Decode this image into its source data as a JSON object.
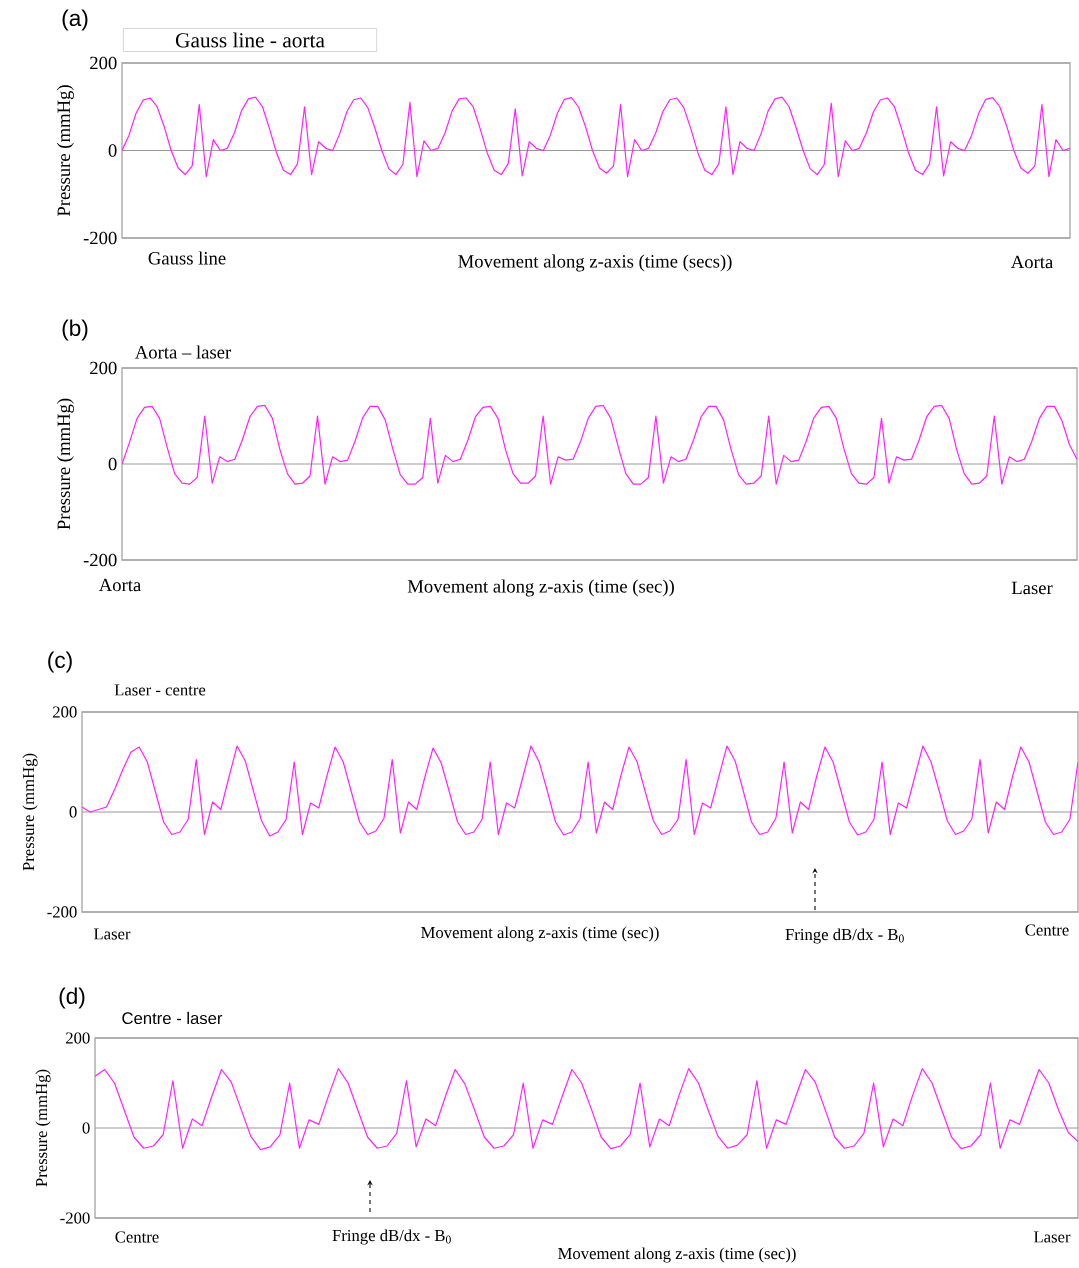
{
  "chart_data": [
    {
      "type": "line",
      "title": "Gauss line - aorta",
      "xlabel": "Movement along z-axis (time (secs))",
      "ylabel": "Pressure (mmHg)",
      "annotations": [
        "(a)",
        "Gauss line",
        "Aorta"
      ],
      "categories": [
        null,
        null,
        null,
        null,
        null,
        null,
        null,
        null,
        null,
        null,
        null,
        null,
        null,
        null,
        null,
        null,
        null,
        null,
        null,
        null,
        null,
        null,
        null,
        null,
        null,
        null,
        null,
        null,
        null,
        null,
        null,
        null,
        null,
        null,
        null,
        null,
        null,
        null,
        null,
        null,
        null,
        null,
        null,
        null,
        null,
        null,
        null,
        null,
        null,
        null,
        null,
        null,
        null,
        null,
        null,
        null,
        null,
        null,
        null,
        null,
        null,
        null,
        null,
        null,
        null,
        null,
        null,
        null,
        null,
        null,
        null,
        null,
        null,
        null,
        null,
        null,
        null,
        null,
        null,
        null,
        null,
        null,
        null,
        null,
        null,
        null,
        null,
        null,
        null,
        null,
        null,
        null,
        null,
        null,
        null,
        null,
        null,
        null,
        null,
        null,
        null,
        null,
        null,
        null,
        null,
        null,
        null,
        null,
        null,
        null,
        null,
        null,
        null,
        null,
        null,
        null,
        null,
        null,
        null,
        null,
        null,
        null,
        null,
        null,
        null,
        null,
        null,
        null,
        null,
        null,
        null,
        null,
        null,
        null,
        null,
        null
      ],
      "series": [
        {
          "color": "#ff22ff",
          "values": [
            0,
            35,
            85,
            115,
            120,
            100,
            55,
            0,
            -40,
            -55,
            -35,
            105,
            -60,
            25,
            0,
            5,
            40,
            90,
            118,
            122,
            100,
            50,
            -5,
            -45,
            -55,
            -30,
            100,
            -55,
            20,
            5,
            0,
            38,
            88,
            116,
            120,
            98,
            52,
            0,
            -42,
            -55,
            -32,
            110,
            -60,
            22,
            0,
            5,
            40,
            90,
            118,
            120,
            100,
            50,
            -5,
            -45,
            -55,
            -30,
            95,
            -58,
            20,
            5,
            0,
            35,
            85,
            117,
            121,
            100,
            55,
            0,
            -40,
            -52,
            -35,
            105,
            -60,
            25,
            0,
            5,
            40,
            88,
            116,
            120,
            98,
            50,
            -5,
            -45,
            -55,
            -30,
            100,
            -55,
            20,
            5,
            0,
            38,
            90,
            118,
            122,
            100,
            52,
            0,
            -42,
            -55,
            -32,
            108,
            -60,
            22,
            0,
            5,
            40,
            88,
            116,
            120,
            100,
            50,
            -5,
            -45,
            -55,
            -30,
            100,
            -58,
            20,
            5,
            0,
            35,
            85,
            117,
            121,
            100,
            55,
            0,
            -40,
            -52,
            -35,
            105,
            -60,
            25,
            0,
            5
          ]
        }
      ],
      "ylim": [
        -200,
        200
      ],
      "yticks": [
        -200,
        0,
        200
      ],
      "grid": "y"
    },
    {
      "type": "line",
      "title": "Aorta – laser",
      "xlabel": "Movement along z-axis (time  (sec))",
      "ylabel": "Pressure (mmHg)",
      "annotations": [
        "(b)",
        "Aorta",
        "Laser"
      ],
      "categories": [
        null,
        null,
        null,
        null,
        null,
        null,
        null,
        null,
        null,
        null,
        null,
        null,
        null,
        null,
        null,
        null,
        null,
        null,
        null,
        null,
        null,
        null,
        null,
        null,
        null,
        null,
        null,
        null,
        null,
        null,
        null,
        null,
        null,
        null,
        null,
        null,
        null,
        null,
        null,
        null,
        null,
        null,
        null,
        null,
        null,
        null,
        null,
        null,
        null,
        null,
        null,
        null,
        null,
        null,
        null,
        null,
        null,
        null,
        null,
        null,
        null,
        null,
        null,
        null,
        null,
        null,
        null,
        null,
        null,
        null,
        null,
        null,
        null,
        null,
        null,
        null,
        null,
        null,
        null,
        null,
        null,
        null,
        null,
        null,
        null,
        null,
        null,
        null,
        null,
        null,
        null,
        null,
        null,
        null,
        null,
        null,
        null,
        null,
        null,
        null,
        null,
        null,
        null,
        null,
        null,
        null,
        null,
        null,
        null,
        null,
        null,
        null,
        null,
        null,
        null,
        null,
        null,
        null,
        null,
        null,
        null,
        null,
        null,
        null,
        null,
        null,
        null,
        null
      ],
      "series": [
        {
          "color": "#ff22ff",
          "values": [
            0,
            45,
            95,
            118,
            120,
            95,
            35,
            -20,
            -40,
            -42,
            -28,
            100,
            -40,
            15,
            5,
            10,
            50,
            98,
            120,
            122,
            95,
            30,
            -20,
            -42,
            -40,
            -25,
            100,
            -42,
            15,
            5,
            8,
            48,
            96,
            120,
            120,
            92,
            32,
            -22,
            -42,
            -42,
            -28,
            95,
            -40,
            18,
            5,
            10,
            50,
            98,
            118,
            120,
            95,
            30,
            -20,
            -40,
            -40,
            -25,
            100,
            -42,
            15,
            8,
            10,
            48,
            95,
            120,
            122,
            95,
            35,
            -20,
            -42,
            -42,
            -28,
            100,
            -40,
            15,
            5,
            10,
            50,
            98,
            120,
            120,
            92,
            30,
            -22,
            -42,
            -40,
            -25,
            100,
            -42,
            18,
            5,
            8,
            48,
            96,
            118,
            120,
            95,
            32,
            -20,
            -40,
            -42,
            -28,
            95,
            -40,
            15,
            8,
            10,
            50,
            98,
            120,
            122,
            95,
            30,
            -20,
            -42,
            -40,
            -25,
            100,
            -42,
            15,
            5,
            10,
            48,
            95,
            120,
            120,
            90,
            40,
            10
          ]
        }
      ],
      "ylim": [
        -200,
        200
      ],
      "yticks": [
        -200,
        0,
        200
      ],
      "grid": "y"
    },
    {
      "type": "line",
      "title": "Laser - centre",
      "xlabel": "Movement along z-axis (time  (sec))",
      "ylabel": "Pressure (mmHg)",
      "annotations": [
        "(c)",
        "Laser",
        "Centre",
        "Fringe dB/dx - B$_{0}$"
      ],
      "categories": [
        null,
        null,
        null,
        null,
        null,
        null,
        null,
        null,
        null,
        null,
        null,
        null,
        null,
        null,
        null,
        null,
        null,
        null,
        null,
        null,
        null,
        null,
        null,
        null,
        null,
        null,
        null,
        null,
        null,
        null,
        null,
        null,
        null,
        null,
        null,
        null,
        null,
        null,
        null,
        null,
        null,
        null,
        null,
        null,
        null,
        null,
        null,
        null,
        null,
        null,
        null,
        null,
        null,
        null,
        null,
        null,
        null,
        null,
        null,
        null,
        null,
        null,
        null,
        null,
        null,
        null,
        null,
        null,
        null,
        null,
        null,
        null,
        null,
        null,
        null,
        null,
        null,
        null,
        null,
        null,
        null,
        null,
        null,
        null,
        null,
        null,
        null,
        null,
        null,
        null,
        null,
        null,
        null,
        null,
        null,
        null,
        null,
        null,
        null,
        null,
        null,
        null,
        null,
        null,
        null,
        null,
        null,
        null,
        null,
        null,
        null,
        null,
        null,
        null,
        null,
        null,
        null,
        null,
        null,
        null,
        null,
        null,
        null
      ],
      "series": [
        {
          "color": "#ff22ff",
          "values": [
            10,
            0,
            5,
            10,
            45,
            85,
            120,
            130,
            100,
            40,
            -20,
            -45,
            -40,
            -15,
            105,
            -45,
            20,
            5,
            70,
            132,
            102,
            42,
            -18,
            -48,
            -40,
            -15,
            100,
            -45,
            18,
            8,
            72,
            130,
            100,
            40,
            -20,
            -45,
            -38,
            -12,
            105,
            -42,
            20,
            5,
            70,
            128,
            98,
            40,
            -20,
            -45,
            -40,
            -15,
            100,
            -45,
            18,
            8,
            70,
            132,
            100,
            42,
            -20,
            -46,
            -40,
            -14,
            100,
            -42,
            20,
            5,
            72,
            130,
            100,
            40,
            -18,
            -45,
            -38,
            -15,
            105,
            -45,
            18,
            8,
            70,
            132,
            102,
            42,
            -20,
            -45,
            -40,
            -12,
            100,
            -42,
            20,
            5,
            72,
            130,
            100,
            40,
            -20,
            -46,
            -40,
            -15,
            100,
            -45,
            18,
            8,
            70,
            132,
            100,
            42,
            -18,
            -45,
            -38,
            -14,
            105,
            -42,
            20,
            5,
            72,
            130,
            100,
            40,
            -20,
            -45,
            -40,
            -15,
            100
          ]
        }
      ],
      "ylim": [
        -200,
        200
      ],
      "yticks": [
        -200,
        0,
        200
      ],
      "grid": "y"
    },
    {
      "type": "line",
      "title": "Centre - laser",
      "xlabel": "Movement along z-axis (time  (sec))",
      "ylabel": "Pressure (mmHg)",
      "annotations": [
        "(d)",
        "Centre",
        "Laser",
        "Fringe dB/dx - B$_{0}$"
      ],
      "categories": [
        null,
        null,
        null,
        null,
        null,
        null,
        null,
        null,
        null,
        null,
        null,
        null,
        null,
        null,
        null,
        null,
        null,
        null,
        null,
        null,
        null,
        null,
        null,
        null,
        null,
        null,
        null,
        null,
        null,
        null,
        null,
        null,
        null,
        null,
        null,
        null,
        null,
        null,
        null,
        null,
        null,
        null,
        null,
        null,
        null,
        null,
        null,
        null,
        null,
        null,
        null,
        null,
        null,
        null,
        null,
        null,
        null,
        null,
        null,
        null,
        null,
        null,
        null,
        null,
        null,
        null,
        null,
        null,
        null,
        null,
        null,
        null,
        null,
        null,
        null,
        null,
        null,
        null,
        null,
        null,
        null,
        null,
        null,
        null,
        null,
        null,
        null,
        null,
        null,
        null,
        null,
        null,
        null,
        null,
        null,
        null,
        null,
        null,
        null,
        null,
        null,
        null
      ],
      "series": [
        {
          "color": "#ff22ff",
          "values": [
            115,
            130,
            100,
            40,
            -20,
            -45,
            -40,
            -15,
            105,
            -45,
            20,
            5,
            70,
            130,
            102,
            42,
            -18,
            -48,
            -42,
            -15,
            100,
            -45,
            18,
            8,
            72,
            132,
            100,
            40,
            -20,
            -45,
            -40,
            -12,
            105,
            -42,
            20,
            5,
            70,
            130,
            98,
            40,
            -20,
            -45,
            -40,
            -15,
            100,
            -45,
            18,
            8,
            70,
            130,
            100,
            42,
            -20,
            -46,
            -40,
            -14,
            100,
            -42,
            20,
            5,
            72,
            132,
            100,
            40,
            -18,
            -45,
            -38,
            -15,
            105,
            -45,
            18,
            8,
            70,
            130,
            102,
            42,
            -20,
            -45,
            -40,
            -12,
            100,
            -42,
            20,
            5,
            72,
            132,
            100,
            40,
            -20,
            -46,
            -40,
            -15,
            100,
            -45,
            18,
            8,
            70,
            130,
            100,
            40,
            -10,
            -30
          ]
        }
      ],
      "ylim": [
        -200,
        200
      ],
      "yticks": [
        -200,
        0,
        200
      ],
      "grid": "y"
    }
  ]
}
